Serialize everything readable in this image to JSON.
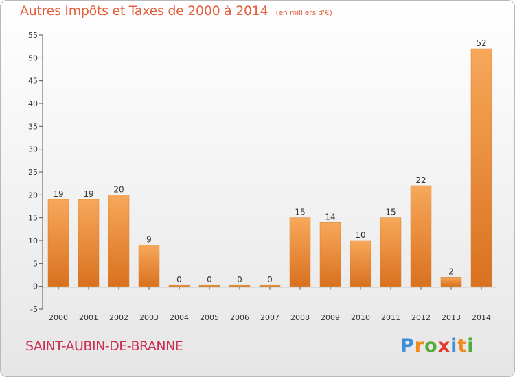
{
  "chart_data": {
    "type": "bar",
    "title": "Autres Impôts et Taxes de 2000 à 2014",
    "subtitle": "(en milliers d'€)",
    "categories": [
      "2000",
      "2001",
      "2002",
      "2003",
      "2004",
      "2005",
      "2006",
      "2007",
      "2008",
      "2009",
      "2010",
      "2011",
      "2012",
      "2013",
      "2014"
    ],
    "values": [
      19,
      19,
      20,
      9,
      0,
      0,
      0,
      0,
      15,
      14,
      10,
      15,
      22,
      2,
      52
    ],
    "data_labels": [
      "19",
      "19",
      "20",
      "9",
      "0",
      "0",
      "0",
      "0",
      "15",
      "14",
      "10",
      "15",
      "22",
      "2",
      "52"
    ],
    "ylim": [
      -5,
      55
    ],
    "yticks": [
      -5,
      0,
      5,
      10,
      15,
      20,
      25,
      30,
      35,
      40,
      45,
      50,
      55
    ],
    "grid": false,
    "bar_color_light": "#f7a85a",
    "bar_color_dark": "#d9711f"
  },
  "footer": {
    "commune": "SAINT-AUBIN-DE-BRANNE",
    "logo": [
      "P",
      "r",
      "o",
      "x",
      "i",
      "t",
      "i"
    ]
  },
  "colors": {
    "title": "#e2603b",
    "commune": "#cc2e52",
    "logo": [
      "#3b8fd8",
      "#f08a1c",
      "#54a93b",
      "#e23a2b",
      "#3b8fd8",
      "#f08a1c",
      "#54a93b"
    ]
  }
}
